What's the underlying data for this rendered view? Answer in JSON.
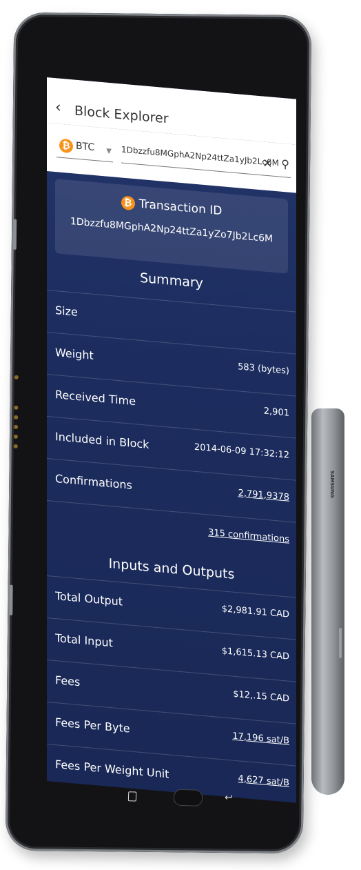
{
  "device": {
    "brand": "SAMSUNG"
  },
  "app": {
    "title": "Block Explorer"
  },
  "search": {
    "currency": "BTC",
    "value": "1Dbzzfu8MGphA2Np24ttZa1yJb2Lc6M"
  },
  "transaction": {
    "heading": "Transaction ID",
    "id": "1Dbzzfu8MGphA2Np24ttZa1yZo7Jb2Lc6M"
  },
  "summary": {
    "title": "Summary",
    "rows": [
      {
        "label": "Size",
        "value": ""
      },
      {
        "label": "Weight",
        "value": "583 (bytes)"
      },
      {
        "label": "Received Time",
        "value": "2,901"
      },
      {
        "label": "Included in Block",
        "value": "2014-06-09 17:32:12"
      },
      {
        "label": "Confirmations",
        "value": "2,791,9378"
      },
      {
        "label": "",
        "value": "315 confirmations"
      }
    ]
  },
  "io": {
    "title": "Inputs and Outputs",
    "rows": [
      {
        "label": "Total Output",
        "value": "$2,981.91 CAD"
      },
      {
        "label": "Total Input",
        "value": "$1,615.13 CAD"
      },
      {
        "label": "Fees",
        "value": "$12,.15 CAD"
      },
      {
        "label": "Fees Per Byte",
        "value": "17,196 sat/B"
      },
      {
        "label": "Fees Per Weight Unit",
        "value": "4,627 sat/B"
      }
    ]
  },
  "colors": {
    "accent": "#f7931a",
    "screen_bg": "#1c2c5e"
  },
  "icons": [
    "back-arrow-icon",
    "bitcoin-icon",
    "caret-down-icon",
    "clear-icon",
    "search-icon",
    "recents-icon",
    "home-button",
    "back-key-icon"
  ]
}
